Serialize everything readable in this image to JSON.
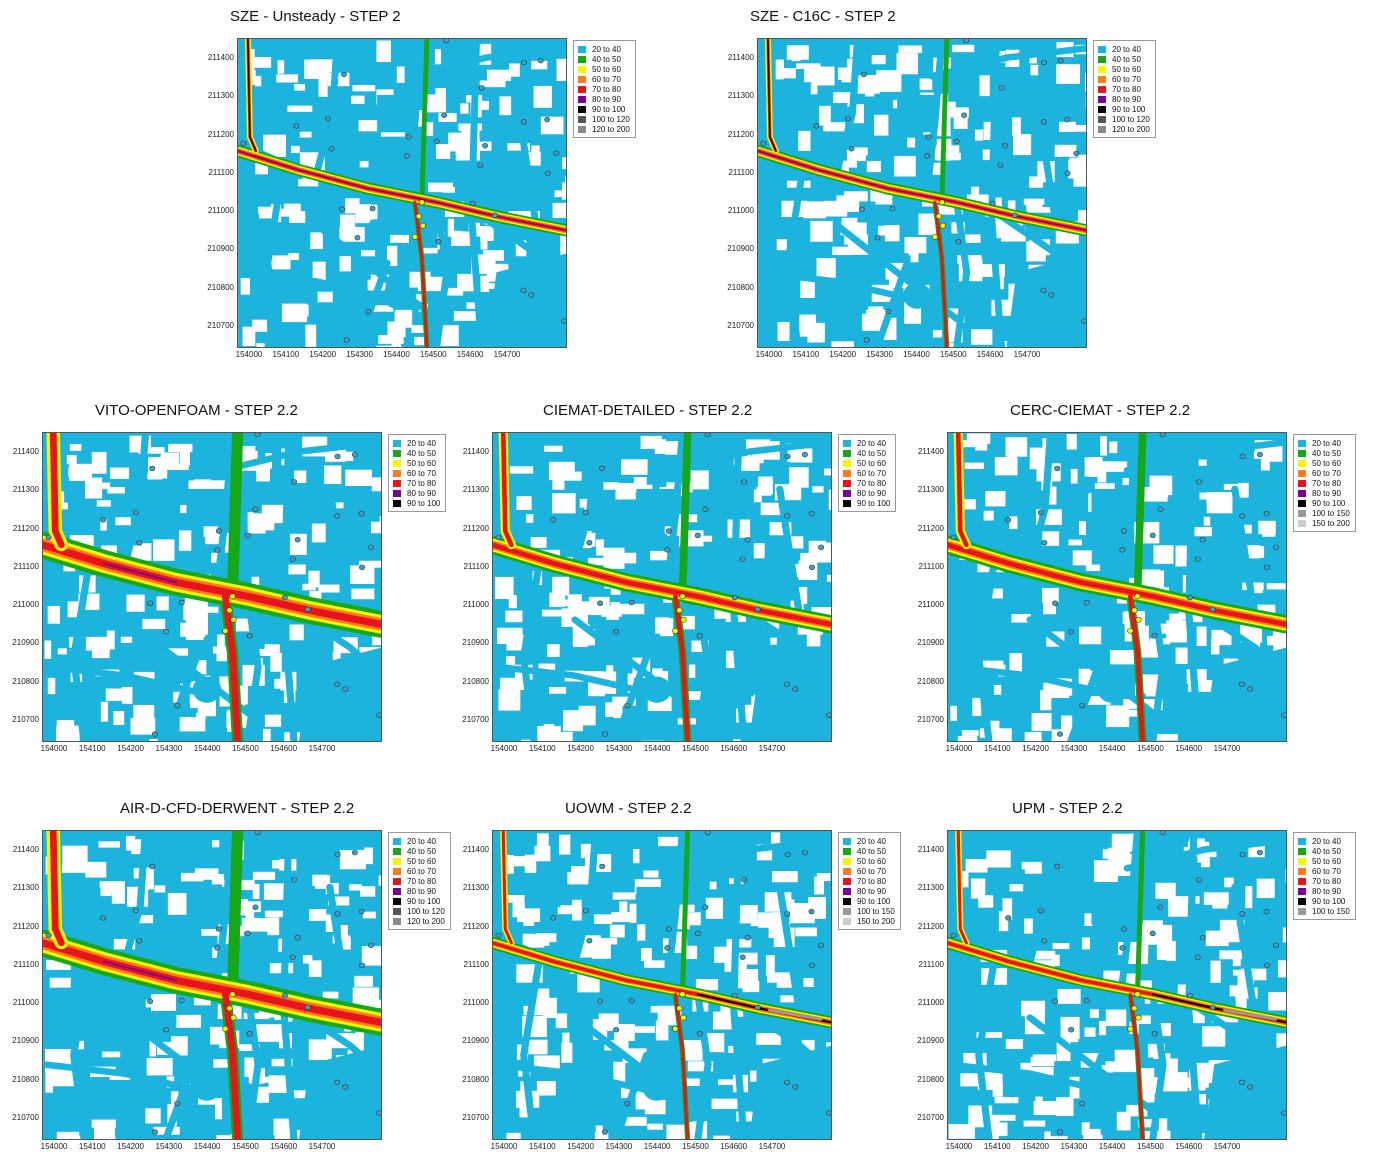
{
  "palette": {
    "20 to 40": "#1cb4dc",
    "40 to 50": "#17a817",
    "50 to 60": "#f6f600",
    "60 to 70": "#ff7a1c",
    "70 to 80": "#e6141c",
    "80 to 90": "#7a0099",
    "90 to 100": "#000000",
    "100 to 120": "#555555",
    "100 to 150": "#999999",
    "120 to 200": "#888888",
    "150 to 200": "#cccccc"
  },
  "chart_data": [
    {
      "type": "heatmap",
      "title": "SZE - Unsteady - STEP 2",
      "style": "sharp",
      "x_ticks": [
        "154000",
        "154100",
        "154200",
        "154300",
        "154400",
        "154500",
        "154600",
        "154700"
      ],
      "y_ticks": [
        "211400",
        "211300",
        "211200",
        "211100",
        "211000",
        "210900",
        "210800",
        "210700"
      ],
      "legend": [
        "20 to 40",
        "40 to 50",
        "50 to 60",
        "60 to 70",
        "70 to 80",
        "80 to 90",
        "90 to 100",
        "100 to 120",
        "120 to 200"
      ]
    },
    {
      "type": "heatmap",
      "title": "SZE - C16C - STEP 2",
      "style": "sharp",
      "x_ticks": [
        "154000",
        "154100",
        "154200",
        "154300",
        "154400",
        "154500",
        "154600",
        "154700"
      ],
      "y_ticks": [
        "211400",
        "211300",
        "211200",
        "211100",
        "211000",
        "210900",
        "210800",
        "210700"
      ],
      "legend": [
        "20 to 40",
        "40 to 50",
        "50 to 60",
        "60 to 70",
        "70 to 80",
        "80 to 90",
        "90 to 100",
        "100 to 120",
        "120 to 200"
      ]
    },
    {
      "type": "heatmap",
      "title": "VITO-OPENFOAM - STEP 2.2",
      "style": "wide",
      "x_ticks": [
        "154000",
        "154100",
        "154200",
        "154300",
        "154400",
        "154500",
        "154600",
        "154700"
      ],
      "y_ticks": [
        "211400",
        "211300",
        "211200",
        "211100",
        "211000",
        "210900",
        "210800",
        "210700"
      ],
      "legend": [
        "20 to 40",
        "40 to 50",
        "50 to 60",
        "60 to 70",
        "70 to 80",
        "80 to 90",
        "90 to 100"
      ]
    },
    {
      "type": "heatmap",
      "title": "CIEMAT-DETAILED - STEP 2.2",
      "style": "medium",
      "x_ticks": [
        "154000",
        "154100",
        "154200",
        "154300",
        "154400",
        "154500",
        "154600",
        "154700"
      ],
      "y_ticks": [
        "211400",
        "211300",
        "211200",
        "211100",
        "211000",
        "210900",
        "210800",
        "210700"
      ],
      "legend": [
        "20 to 40",
        "40 to 50",
        "50 to 60",
        "60 to 70",
        "70 to 80",
        "80 to 90",
        "90 to 100"
      ]
    },
    {
      "type": "heatmap",
      "title": "CERC-CIEMAT - STEP 2.2",
      "style": "medium",
      "x_ticks": [
        "154000",
        "154100",
        "154200",
        "154300",
        "154400",
        "154500",
        "154600",
        "154700"
      ],
      "y_ticks": [
        "211400",
        "211300",
        "211200",
        "211100",
        "211000",
        "210900",
        "210800",
        "210700"
      ],
      "legend": [
        "20 to 40",
        "40 to 50",
        "50 to 60",
        "60 to 70",
        "70 to 80",
        "80 to 90",
        "90 to 100",
        "100 to 150",
        "150 to 200"
      ]
    },
    {
      "type": "heatmap",
      "title": "AIR-D-CFD-DERWENT - STEP 2.2",
      "style": "wide",
      "x_ticks": [
        "154000",
        "154100",
        "154200",
        "154300",
        "154400",
        "154500",
        "154600",
        "154700"
      ],
      "y_ticks": [
        "211400",
        "211300",
        "211200",
        "211100",
        "211000",
        "210900",
        "210800",
        "210700"
      ],
      "legend": [
        "20 to 40",
        "40 to 50",
        "50 to 60",
        "60 to 70",
        "70 to 80",
        "80 to 90",
        "90 to 100",
        "100 to 120",
        "120 to 200"
      ]
    },
    {
      "type": "heatmap",
      "title": "UOWM - STEP 2.2",
      "style": "pixel",
      "x_ticks": [
        "154000",
        "154100",
        "154200",
        "154300",
        "154400",
        "154500",
        "154600",
        "154700"
      ],
      "y_ticks": [
        "211400",
        "211300",
        "211200",
        "211100",
        "211000",
        "210900",
        "210800",
        "210700"
      ],
      "legend": [
        "20 to 40",
        "40 to 50",
        "50 to 60",
        "60 to 70",
        "70 to 80",
        "80 to 90",
        "90 to 100",
        "100 to 150",
        "150 to 200"
      ]
    },
    {
      "type": "heatmap",
      "title": "UPM - STEP 2.2",
      "style": "pixel",
      "x_ticks": [
        "154000",
        "154100",
        "154200",
        "154300",
        "154400",
        "154500",
        "154600",
        "154700"
      ],
      "y_ticks": [
        "211400",
        "211300",
        "211200",
        "211100",
        "211000",
        "210900",
        "210800",
        "210700"
      ],
      "legend": [
        "20 to 40",
        "40 to 50",
        "50 to 60",
        "60 to 70",
        "70 to 80",
        "80 to 90",
        "90 to 100",
        "100 to 150"
      ]
    }
  ]
}
